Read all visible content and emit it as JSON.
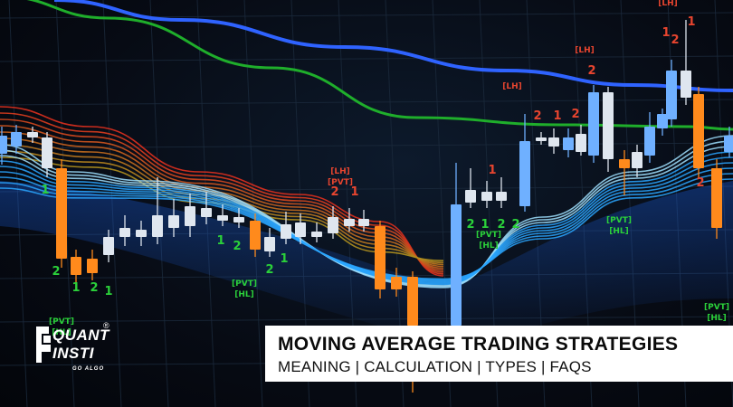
{
  "banner": {
    "title": "MOVING AVERAGE TRADING STRATEGIES",
    "subtitle": "MEANING | CALCULATION | TYPES | FAQS"
  },
  "logo": {
    "line1": "QUANT",
    "line2": "INSTI",
    "tagline": "GO ALGO",
    "registered": "®"
  },
  "chart_data": {
    "type": "candlestick",
    "annotations": [
      {
        "text": "[PVT]",
        "color": "#2bd13a"
      },
      {
        "text": "[HL]",
        "color": "#2bd13a"
      },
      {
        "text": "[LH]",
        "color": "#e8452f"
      },
      {
        "text": "[PVT]",
        "color": "#e8452f"
      },
      {
        "text": "2",
        "color": "#2bd13a"
      },
      {
        "text": "1",
        "color": "#2bd13a"
      },
      {
        "text": "2",
        "color": "#e8452f"
      },
      {
        "text": "1",
        "color": "#e8452f"
      }
    ],
    "colors": {
      "bull_candle": "#6fb0ff",
      "bear_candle": "#ff8a1c",
      "neutral_candle": "#dfe6ef",
      "ma_fast": "#2f63ff",
      "ma_slow": "#1fae2b",
      "ribbon_red": "#e0301e",
      "ribbon_blue": "#2aa6ff",
      "grid": "#1b2a3c"
    }
  }
}
